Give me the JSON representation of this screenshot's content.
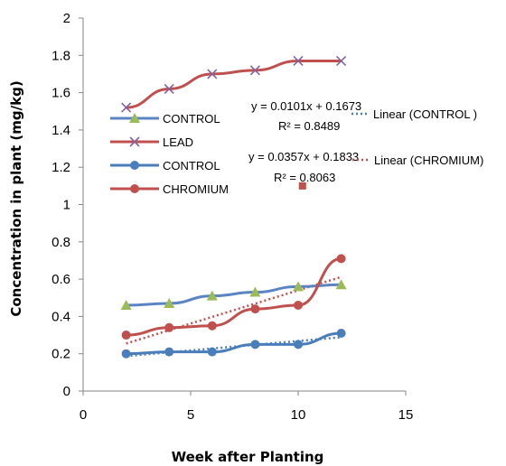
{
  "chart_data": {
    "type": "line",
    "xlabel": "Week after Planting",
    "ylabel": "Concentration in plant (mg/kg)",
    "xlim": [
      0,
      15
    ],
    "ylim": [
      0,
      2
    ],
    "x_ticks": [
      "0",
      "5",
      "10",
      "15"
    ],
    "y_ticks": [
      "0",
      "0.2",
      "0.4",
      "0.6",
      "0.8",
      "1",
      "1.2",
      "1.4",
      "1.6",
      "1.8",
      "2"
    ],
    "x": [
      2,
      4,
      6,
      8,
      10,
      12
    ],
    "series": [
      {
        "name": "CONTROL",
        "marker": "triangle",
        "color": "#5b84c4",
        "marker_color": "#9bbb59",
        "values": [
          0.46,
          0.47,
          0.51,
          0.53,
          0.56,
          0.57
        ]
      },
      {
        "name": "LEAD",
        "marker": "x",
        "color": "#c0504d",
        "marker_color": "#8064a2",
        "values": [
          1.52,
          1.62,
          1.7,
          1.72,
          1.77,
          1.77
        ]
      },
      {
        "name": "CONTROL",
        "marker": "circle",
        "color": "#4a7ebb",
        "marker_color": "#4a7ebb",
        "values": [
          0.2,
          0.21,
          0.21,
          0.25,
          0.25,
          0.31
        ]
      },
      {
        "name": "CHROMIUM",
        "marker": "circle",
        "color": "#c0504d",
        "marker_color": "#c0504d",
        "values": [
          0.3,
          0.34,
          0.35,
          0.44,
          0.46,
          0.71
        ]
      }
    ],
    "trendlines": [
      {
        "name": "Linear (CONTROL )",
        "color": "#4a7ebb",
        "slope": 0.0101,
        "intercept": 0.1673,
        "equation": "y = 0.0101x + 0.1673",
        "r2": "R² = 0.8489"
      },
      {
        "name": "Linear (CHROMIUM)",
        "color": "#c0504d",
        "slope": 0.0357,
        "intercept": 0.1833,
        "equation": "y = 0.0357x + 0.1833",
        "r2": "R² = 0.8063"
      }
    ],
    "stray_point": {
      "x": 10.2,
      "y": 1.1,
      "color": "#c0504d"
    }
  }
}
